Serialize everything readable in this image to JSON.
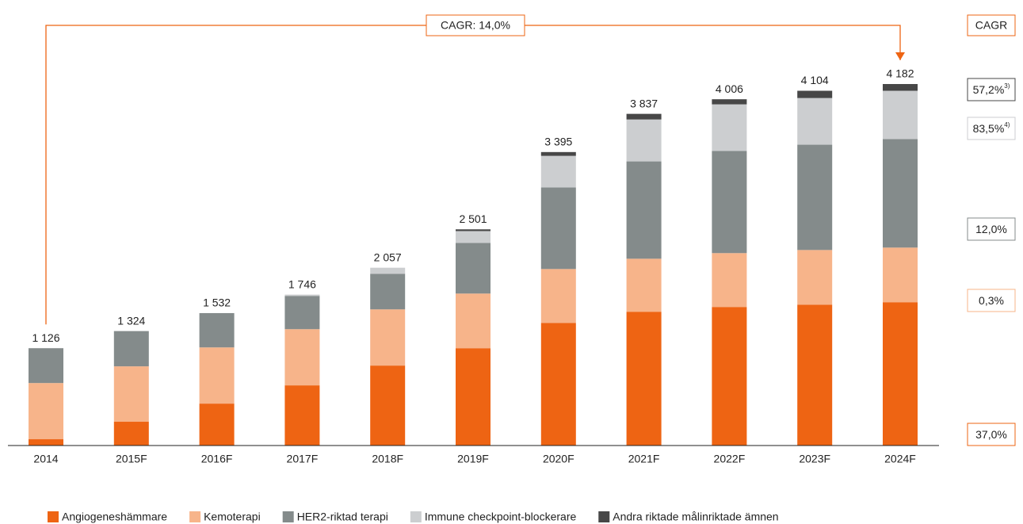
{
  "chart_data": {
    "type": "stacked_bar",
    "categories": [
      "2014",
      "2015F",
      "2016F",
      "2017F",
      "2018F",
      "2019F",
      "2020F",
      "2021F",
      "2022F",
      "2023F",
      "2024F"
    ],
    "series": [
      {
        "name": "Angiogeneshämmare",
        "color": "#ee6413",
        "values": [
          73,
          275,
          485,
          696,
          925,
          1126,
          1419,
          1548,
          1603,
          1630,
          1658
        ]
      },
      {
        "name": "Kemoterapi",
        "color": "#f7b48a",
        "values": [
          650,
          641,
          650,
          650,
          650,
          632,
          623,
          613,
          623,
          632,
          632
        ]
      },
      {
        "name": "HER2-riktad terapi",
        "color": "#848b8b",
        "values": [
          403,
          408,
          397,
          385,
          412,
          586,
          943,
          1126,
          1181,
          1218,
          1255
        ]
      },
      {
        "name": "Immune checkpoint-blockerare",
        "color": "#ccced0",
        "values": [
          0,
          0,
          0,
          15,
          70,
          137,
          366,
          485,
          540,
          540,
          559
        ]
      },
      {
        "name": "Andra riktade målinriktade ämnen",
        "color": "#474747",
        "values": [
          0,
          0,
          0,
          0,
          0,
          20,
          44,
          65,
          59,
          84,
          78
        ]
      }
    ],
    "total_labels": [
      "1 126",
      "1 324",
      "1 532",
      "1 746",
      "2 057",
      "2 501",
      "3 395",
      "3 837",
      "4 006",
      "4 104",
      "4 182"
    ],
    "annotation": "CAGR: 14,0%",
    "cagr_header": "CAGR",
    "cagr": [
      {
        "value": "57,2%",
        "note": "3)",
        "color": "#474747"
      },
      {
        "value": "83,5%",
        "note": "4)",
        "color": "#ccced0"
      },
      {
        "value": "12,0%",
        "color": "#848b8b"
      },
      {
        "value": "0,3%",
        "color": "#f7b48a"
      },
      {
        "value": "37,0%",
        "color": "#ee6413"
      }
    ]
  }
}
